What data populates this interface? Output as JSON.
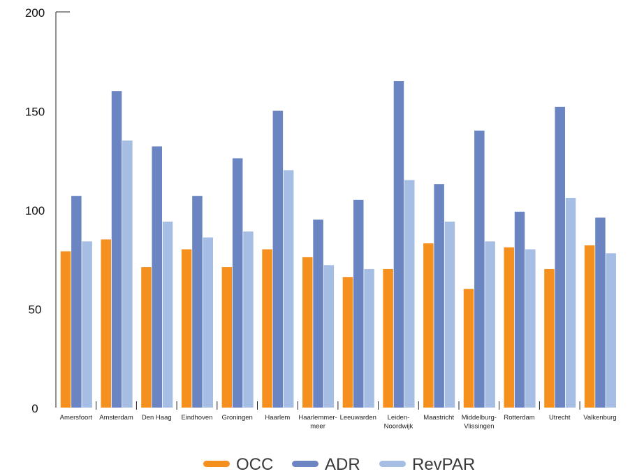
{
  "chart_data": {
    "type": "bar",
    "title": "",
    "xlabel": "",
    "ylabel": "",
    "ylim": [
      0,
      200
    ],
    "yticks": [
      "0",
      "50",
      "100",
      "150",
      "200"
    ],
    "grid": false,
    "legend_position": "bottom",
    "categories": [
      [
        "Amersfoort"
      ],
      [
        "Amsterdam"
      ],
      [
        "Den Haag"
      ],
      [
        "Eindhoven"
      ],
      [
        "Groningen"
      ],
      [
        "Haarlem"
      ],
      [
        "Haarlemmer-",
        "meer"
      ],
      [
        "Leeuwarden"
      ],
      [
        "Leiden-",
        "Noordwijk"
      ],
      [
        "Maastricht"
      ],
      [
        "Middelburg-",
        "Vlissingen"
      ],
      [
        "Rotterdam"
      ],
      [
        "Utrecht"
      ],
      [
        "Valkenburg"
      ]
    ],
    "series": [
      {
        "name": "OCC",
        "color": "#F5901E",
        "values": [
          79,
          85,
          71,
          80,
          71,
          80,
          76,
          66,
          70,
          83,
          60,
          81,
          70,
          82
        ]
      },
      {
        "name": "ADR",
        "color": "#6A85C2",
        "values": [
          107,
          160,
          132,
          107,
          126,
          150,
          95,
          105,
          165,
          113,
          140,
          99,
          152,
          96
        ]
      },
      {
        "name": "RevPAR",
        "color": "#A6BEE3",
        "values": [
          84,
          135,
          94,
          86,
          89,
          120,
          72,
          70,
          115,
          94,
          84,
          80,
          106,
          78
        ]
      }
    ]
  }
}
